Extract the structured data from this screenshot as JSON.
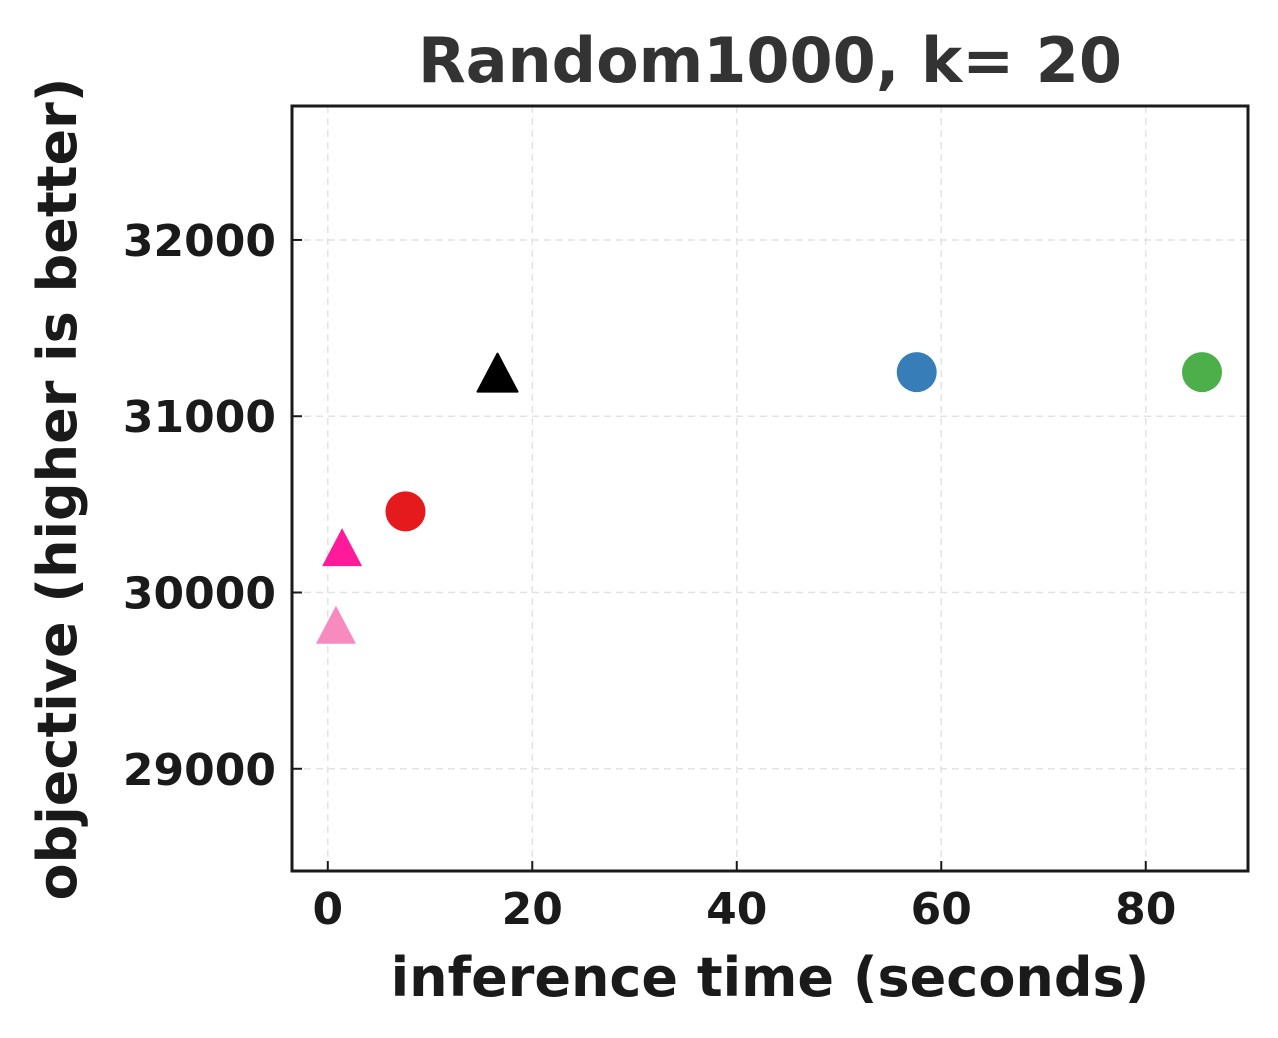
{
  "chart_data": {
    "type": "scatter",
    "title": "Random1000, k= 20",
    "xlabel": "inference time (seconds)",
    "ylabel": "objective (higher is better)",
    "xlim": [
      -3.5,
      90
    ],
    "ylim": [
      28420,
      32760
    ],
    "xticks": [
      {
        "value": 0,
        "label": "0"
      },
      {
        "value": 20,
        "label": "20"
      },
      {
        "value": 40,
        "label": "40"
      },
      {
        "value": 60,
        "label": "60"
      },
      {
        "value": 80,
        "label": "80"
      }
    ],
    "yticks": [
      {
        "value": 29000,
        "label": "29000"
      },
      {
        "value": 30000,
        "label": "30000"
      },
      {
        "value": 31000,
        "label": "31000"
      },
      {
        "value": 32000,
        "label": "32000"
      }
    ],
    "grid": true,
    "points": [
      {
        "x": 0.8,
        "y": 29800,
        "marker": "triangle",
        "color": "#f78bbf"
      },
      {
        "x": 1.4,
        "y": 30240,
        "marker": "triangle",
        "color": "#ff1a9a"
      },
      {
        "x": 7.6,
        "y": 30460,
        "marker": "circle",
        "color": "#e41a1c"
      },
      {
        "x": 16.6,
        "y": 31230,
        "marker": "triangle",
        "color": "#000000"
      },
      {
        "x": 57.6,
        "y": 31250,
        "marker": "circle",
        "color": "#377eb8"
      },
      {
        "x": 85.5,
        "y": 31250,
        "marker": "circle",
        "color": "#4daf4a"
      }
    ]
  }
}
